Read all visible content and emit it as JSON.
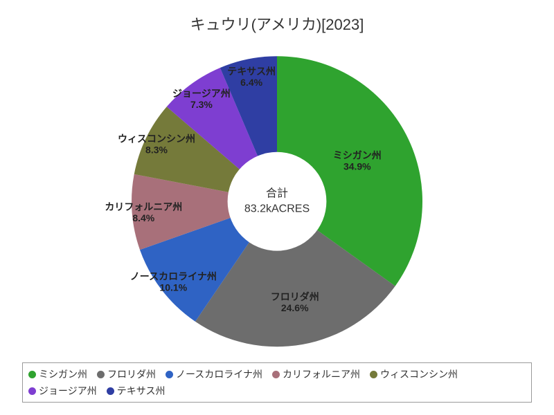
{
  "chart": {
    "type": "pie",
    "title": "キュウリ(アメリカ)[2023]",
    "title_fontsize": 22,
    "background_color": "#ffffff",
    "donut_inner_ratio": 0.34,
    "start_angle_deg": 0,
    "center": {
      "line1": "合計",
      "line2": "83.2kACRES",
      "fontsize": 16,
      "color": "#333333"
    },
    "slices": [
      {
        "label": "ミシガン州",
        "percent": 34.9,
        "color": "#2fa32f",
        "label_color": "#222222",
        "label_r": 0.62
      },
      {
        "label": "フロリダ州",
        "percent": 24.6,
        "color": "#6d6d6d",
        "label_color": "#ffffff",
        "label_r": 0.7
      },
      {
        "label": "ノースカロライナ州",
        "percent": 10.1,
        "color": "#2f63c4",
        "label_color": "#ffffff",
        "label_r": 0.9
      },
      {
        "label": "カリフォルニア州",
        "percent": 8.4,
        "color": "#a8707a",
        "label_color": "#ffffff",
        "label_r": 0.92
      },
      {
        "label": "ウィスコンシン州",
        "percent": 8.3,
        "color": "#757a3a",
        "label_color": "#222222",
        "label_r": 0.92
      },
      {
        "label": "ジョージア州",
        "percent": 7.3,
        "color": "#7e3ed1",
        "label_color": "#ffffff",
        "label_r": 0.88
      },
      {
        "label": "テキサス州",
        "percent": 6.4,
        "color": "#2f3ea3",
        "label_color": "#222222",
        "label_r": 0.88
      }
    ],
    "legend": {
      "border_color": "#999999",
      "fontsize": 14,
      "dot_radius": 5.5
    }
  }
}
